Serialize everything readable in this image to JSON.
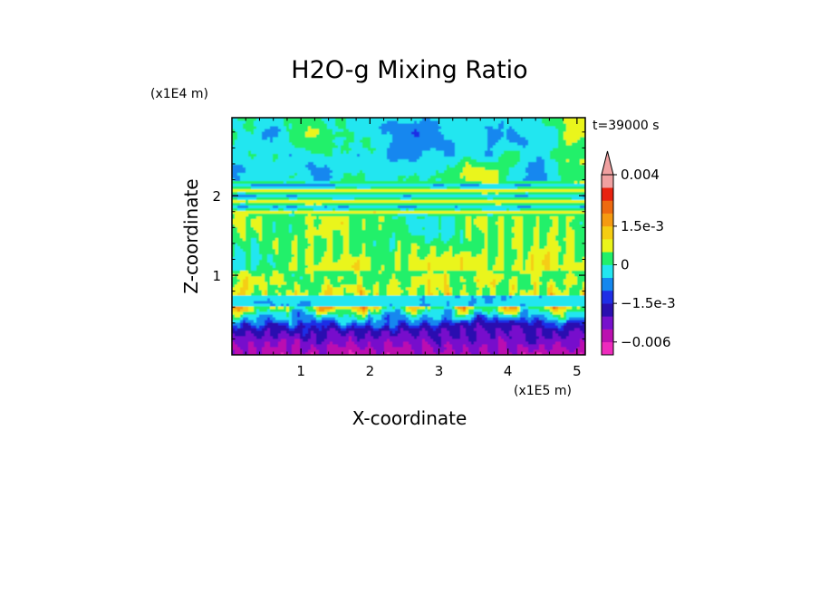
{
  "chart_data": {
    "type": "heatmap",
    "title": "H2O-g Mixing Ratio",
    "xlabel": "X-coordinate",
    "ylabel": "Z-coordinate",
    "x_unit": "(x1E5 m)",
    "y_unit": "(x1E4 m)",
    "time_label": "t=39000 s",
    "xlim": [
      0.0,
      5.12
    ],
    "ylim": [
      0.0,
      2.98
    ],
    "x_ticks": [
      {
        "value": 1,
        "label": "1"
      },
      {
        "value": 2,
        "label": "2"
      },
      {
        "value": 3,
        "label": "3"
      },
      {
        "value": 4,
        "label": "4"
      },
      {
        "value": 5,
        "label": "5"
      }
    ],
    "y_ticks": [
      {
        "value": 1,
        "label": "1"
      },
      {
        "value": 2,
        "label": "2"
      }
    ],
    "colorbar": {
      "levels": [
        -0.008,
        -0.006,
        -0.004,
        -0.0025,
        -0.0015,
        -0.001,
        -0.0005,
        0.0,
        0.0005,
        0.001,
        0.0015,
        0.002,
        0.0025,
        0.003,
        0.004
      ],
      "colors": [
        "#ee2bbd",
        "#bb11b0",
        "#7711cc",
        "#2a0fb0",
        "#1f2ee6",
        "#1487ef",
        "#22e6f0",
        "#22f06a",
        "#eaf51c",
        "#f5cd12",
        "#f59a11",
        "#ee6a10",
        "#e8220f",
        "#f0a0a0"
      ],
      "labels": [
        {
          "value": 0.004,
          "label": "0.004"
        },
        {
          "value": 0.0015,
          "label": "1.5e-3"
        },
        {
          "value": 0.0,
          "label": "0"
        },
        {
          "value": -0.0015,
          "label": "−1.5e-3"
        },
        {
          "value": -0.006,
          "label": "−0.006"
        }
      ],
      "extend": "max"
    },
    "grid": false
  }
}
